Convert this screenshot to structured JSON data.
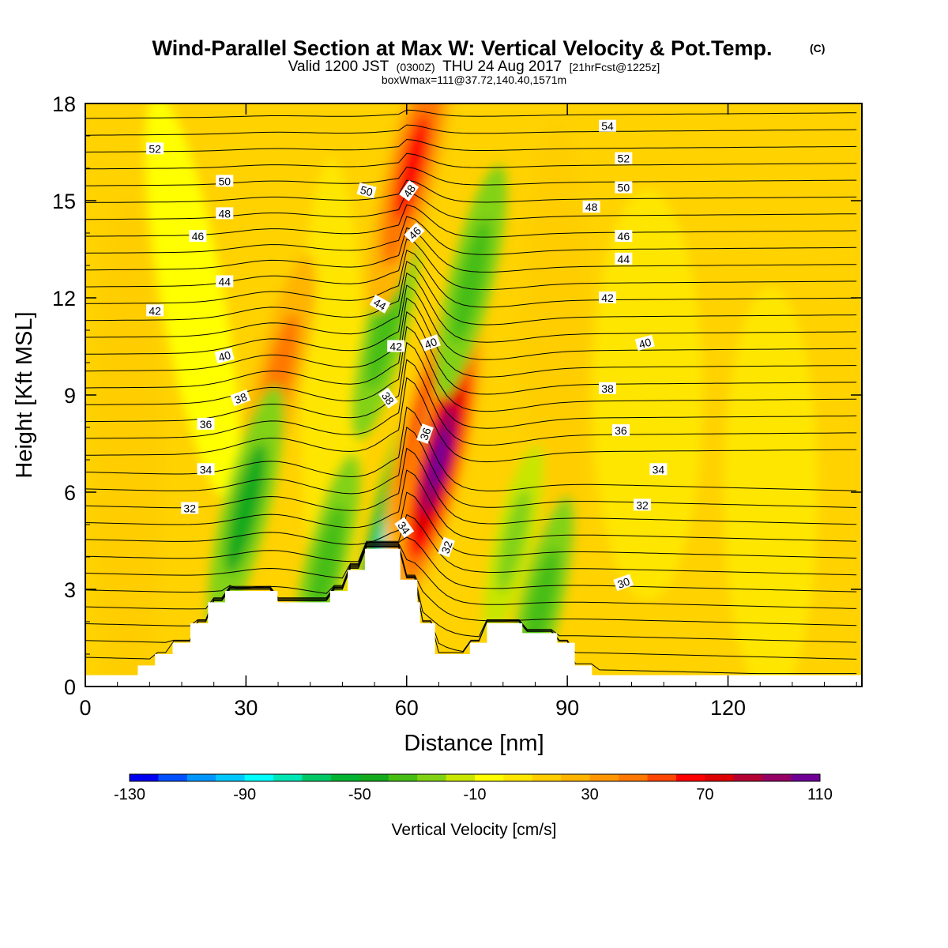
{
  "title": {
    "main": "Wind-Parallel Section at Max W: Vertical Velocity & Pot.Temp.",
    "copyright": "(C)",
    "valid_prefix": "Valid 1200 JST",
    "valid_utc": "(0300Z)",
    "valid_date": "THU 24 Aug 2017",
    "forecast": "[21hrFcst@1225z]",
    "box": "boxWmax=111@37.72,140.40,1571m"
  },
  "colors": {
    "terrain": "#ffffff",
    "contour": "#000000",
    "frame": "#000000"
  },
  "chart_data": {
    "type": "heatmap",
    "xlabel": "Distance [nm]",
    "ylabel": "Height [Kft MSL]",
    "xlim": [
      0,
      145
    ],
    "ylim": [
      0,
      18
    ],
    "xticks": [
      0,
      30,
      60,
      90,
      120
    ],
    "yticks": [
      0,
      3,
      6,
      9,
      12,
      15,
      18
    ],
    "colorbar": {
      "title": "Vertical Velocity [cm/s]",
      "tick_labels": [
        "-130",
        "-90",
        "-50",
        "-10",
        "30",
        "70",
        "110"
      ],
      "tick_values": [
        -130,
        -90,
        -50,
        -10,
        30,
        70,
        110
      ],
      "bins": [
        -130,
        -120,
        -110,
        -100,
        -90,
        -80,
        -70,
        -60,
        -50,
        -40,
        -30,
        -20,
        -10,
        0,
        10,
        20,
        30,
        40,
        50,
        60,
        70,
        80,
        90,
        100,
        110
      ],
      "colors": [
        "#0000f0",
        "#0050ff",
        "#0096ff",
        "#00c8ff",
        "#00ffff",
        "#00e6b4",
        "#00c864",
        "#00b432",
        "#14aa1e",
        "#46be14",
        "#82d214",
        "#c8e600",
        "#ffff00",
        "#ffe600",
        "#ffcd00",
        "#ffb400",
        "#ff9600",
        "#ff7800",
        "#ff4600",
        "#ff0000",
        "#dc0000",
        "#b40032",
        "#960064",
        "#6e0096"
      ]
    },
    "vertical_velocity_features": [
      {
        "x": 36,
        "z": 9.5,
        "w": 45,
        "note": "updraft"
      },
      {
        "x": 30,
        "z": 5.5,
        "w": -45,
        "note": "downdraft"
      },
      {
        "x": 45,
        "z": 3.8,
        "w": -35,
        "note": "downdraft"
      },
      {
        "x": 56,
        "z": 11,
        "w": -35,
        "note": "downdraft"
      },
      {
        "x": 58,
        "z": 5,
        "w": -100,
        "note": "strong downdraft"
      },
      {
        "x": 61,
        "z": 16,
        "w": 60,
        "note": "updraft"
      },
      {
        "x": 64,
        "z": 8,
        "w": 80,
        "note": "updraft"
      },
      {
        "x": 66,
        "z": 7,
        "w": 110,
        "note": "max updraft"
      },
      {
        "x": 72,
        "z": 12.5,
        "w": -40,
        "note": "downdraft"
      },
      {
        "x": 80,
        "z": 4.5,
        "w": -25,
        "note": "downdraft"
      },
      {
        "x": 85,
        "z": 2.5,
        "w": -35,
        "note": "downdraft"
      }
    ],
    "terrain_profile_kft": [
      [
        0,
        0.35
      ],
      [
        9.8,
        0.35
      ],
      [
        9.8,
        0.65
      ],
      [
        13,
        0.65
      ],
      [
        13,
        1.0
      ],
      [
        16.3,
        1.0
      ],
      [
        16.3,
        1.35
      ],
      [
        19.6,
        1.35
      ],
      [
        19.6,
        1.95
      ],
      [
        22.9,
        1.95
      ],
      [
        22.9,
        2.6
      ],
      [
        26.1,
        2.6
      ],
      [
        26.1,
        2.95
      ],
      [
        35.9,
        2.95
      ],
      [
        35.9,
        2.6
      ],
      [
        45.7,
        2.6
      ],
      [
        45.7,
        2.95
      ],
      [
        49,
        2.95
      ],
      [
        49,
        3.6
      ],
      [
        52.2,
        3.6
      ],
      [
        52.2,
        4.25
      ],
      [
        58.8,
        4.25
      ],
      [
        58.8,
        3.3
      ],
      [
        62,
        3.3
      ],
      [
        62,
        2.6
      ],
      [
        62.5,
        2.6
      ],
      [
        62.5,
        1.95
      ],
      [
        65.3,
        1.95
      ],
      [
        65.3,
        1.0
      ],
      [
        71.8,
        1.0
      ],
      [
        71.8,
        1.35
      ],
      [
        75,
        1.35
      ],
      [
        75,
        1.95
      ],
      [
        81.6,
        1.95
      ],
      [
        81.6,
        1.65
      ],
      [
        88.1,
        1.65
      ],
      [
        88.1,
        1.35
      ],
      [
        91.4,
        1.35
      ],
      [
        91.4,
        0.65
      ],
      [
        94.6,
        0.65
      ],
      [
        94.6,
        0.35
      ],
      [
        145,
        0.35
      ]
    ],
    "potential_temperature_labels": [
      {
        "text": "52",
        "x": 13,
        "z": 16.6,
        "rot": 0
      },
      {
        "text": "50",
        "x": 26,
        "z": 15.6,
        "rot": 0
      },
      {
        "text": "48",
        "x": 26,
        "z": 14.6,
        "rot": 0
      },
      {
        "text": "46",
        "x": 21,
        "z": 13.9,
        "rot": 0
      },
      {
        "text": "44",
        "x": 26,
        "z": 12.5,
        "rot": 0
      },
      {
        "text": "42",
        "x": 13,
        "z": 11.6,
        "rot": 0
      },
      {
        "text": "40",
        "x": 26,
        "z": 10.2,
        "rot": -15
      },
      {
        "text": "38",
        "x": 29,
        "z": 8.9,
        "rot": -20
      },
      {
        "text": "36",
        "x": 22.5,
        "z": 8.1,
        "rot": 0
      },
      {
        "text": "34",
        "x": 22.5,
        "z": 6.7,
        "rot": 0
      },
      {
        "text": "32",
        "x": 19.5,
        "z": 5.5,
        "rot": 0
      },
      {
        "text": "50",
        "x": 52.5,
        "z": 15.3,
        "rot": 15
      },
      {
        "text": "48",
        "x": 60.5,
        "z": 15.3,
        "rot": -55
      },
      {
        "text": "46",
        "x": 61.5,
        "z": 14.0,
        "rot": -45
      },
      {
        "text": "44",
        "x": 55,
        "z": 11.8,
        "rot": 30
      },
      {
        "text": "42",
        "x": 58,
        "z": 10.5,
        "rot": 0
      },
      {
        "text": "40",
        "x": 64.5,
        "z": 10.6,
        "rot": -20
      },
      {
        "text": "38",
        "x": 56.5,
        "z": 8.9,
        "rot": 55
      },
      {
        "text": "36",
        "x": 63.5,
        "z": 7.8,
        "rot": -70
      },
      {
        "text": "34",
        "x": 59.5,
        "z": 4.9,
        "rot": 55
      },
      {
        "text": "32",
        "x": 67.5,
        "z": 4.3,
        "rot": -70
      },
      {
        "text": "54",
        "x": 97.5,
        "z": 17.3,
        "rot": 0
      },
      {
        "text": "52",
        "x": 100.5,
        "z": 16.3,
        "rot": 0
      },
      {
        "text": "50",
        "x": 100.5,
        "z": 15.4,
        "rot": 0
      },
      {
        "text": "48",
        "x": 94.5,
        "z": 14.8,
        "rot": 0
      },
      {
        "text": "46",
        "x": 100.5,
        "z": 13.9,
        "rot": 0
      },
      {
        "text": "44",
        "x": 100.5,
        "z": 13.2,
        "rot": 0
      },
      {
        "text": "42",
        "x": 97.5,
        "z": 12.0,
        "rot": 0
      },
      {
        "text": "40",
        "x": 104.5,
        "z": 10.6,
        "rot": -15
      },
      {
        "text": "38",
        "x": 97.5,
        "z": 9.2,
        "rot": 0
      },
      {
        "text": "36",
        "x": 100,
        "z": 7.9,
        "rot": 0
      },
      {
        "text": "34",
        "x": 107,
        "z": 6.7,
        "rot": 0
      },
      {
        "text": "32",
        "x": 104,
        "z": 5.6,
        "rot": 0
      },
      {
        "text": "30",
        "x": 100.5,
        "z": 3.2,
        "rot": -20
      }
    ]
  }
}
